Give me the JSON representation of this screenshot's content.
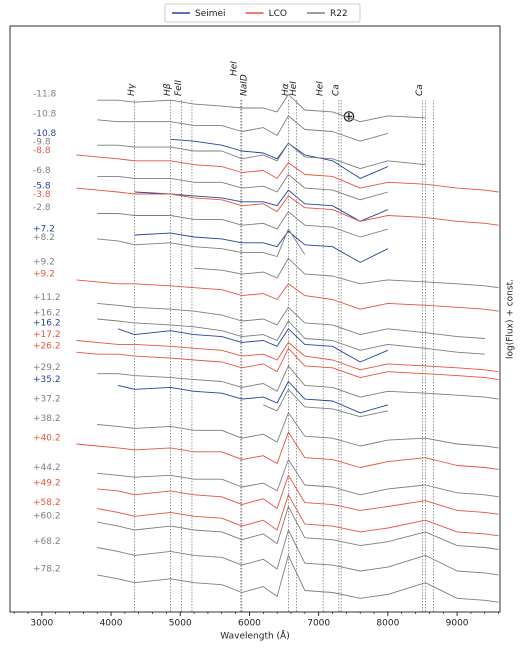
{
  "chart_data": {
    "type": "line",
    "xlabel": "Wavelength (Å)",
    "ylabel": "log(Flux) + const.",
    "legend": [
      {
        "name": "Seimei",
        "color": "#23459b"
      },
      {
        "name": "LCO",
        "color": "#e8553e"
      },
      {
        "name": "R22",
        "color": "#7f7f7f"
      }
    ],
    "xlim": [
      2540,
      9620
    ],
    "xticks": [
      3000,
      4000,
      5000,
      6000,
      7000,
      8000,
      9000
    ],
    "xminor": [
      2600,
      2800,
      3200,
      3400,
      3600,
      3800,
      4200,
      4400,
      4600,
      4800,
      5200,
      5400,
      5600,
      5800,
      6200,
      6400,
      6600,
      6800,
      7200,
      7400,
      7600,
      7800,
      8200,
      8400,
      8600,
      8800,
      9200,
      9400,
      9600
    ],
    "ylim": [
      0,
      30
    ],
    "line_ids": [
      {
        "label": "Hγ",
        "x": [
          4340
        ]
      },
      {
        "label": "Hβ",
        "x": [
          4861
        ]
      },
      {
        "label": "FeII",
        "x": [
          5018,
          5169
        ]
      },
      {
        "label": "HeI",
        "x": [
          5876
        ]
      },
      {
        "label": "NaID",
        "x": [
          5890
        ]
      },
      {
        "label": "Hα",
        "x": [
          6563
        ]
      },
      {
        "label": "HeI",
        "x": [
          6678
        ]
      },
      {
        "label": "HeI",
        "x": [
          7065
        ]
      },
      {
        "label": "Ca",
        "x": [
          7291,
          7324
        ]
      },
      {
        "label": "Ca",
        "x": [
          8498,
          8542,
          8662
        ]
      }
    ],
    "annotation": "⊕",
    "x": [
      3500,
      3800,
      4100,
      4340,
      4861,
      5200,
      5600,
      5890,
      6200,
      6400,
      6563,
      6800,
      7200,
      7600,
      8000,
      8542,
      9000,
      9400,
      9600
    ],
    "spectra": [
      {
        "label": "-11.8",
        "color": "#7f7f7f",
        "values": [
          null,
          26.2,
          26.2,
          26.1,
          26.2,
          26.0,
          25.9,
          25.8,
          25.8,
          25.6,
          26.5,
          25.7,
          25.6,
          25.1,
          25.4,
          25.3,
          null,
          null,
          null
        ]
      },
      {
        "label": "-10.8",
        "color": "#7f7f7f",
        "values": [
          null,
          25.2,
          25.1,
          25.1,
          25.1,
          24.9,
          24.9,
          24.6,
          24.8,
          24.4,
          25.4,
          24.7,
          24.6,
          24.1,
          24.5,
          null,
          null,
          null,
          null
        ]
      },
      {
        "label": "-10.8",
        "color": "#23459b",
        "values": [
          null,
          null,
          null,
          null,
          24.2,
          24.1,
          23.9,
          23.6,
          23.5,
          23.2,
          24.0,
          23.4,
          23.1,
          22.2,
          22.8,
          null,
          null,
          null,
          null
        ]
      },
      {
        "label": "-9.8",
        "color": "#7f7f7f",
        "values": [
          null,
          23.9,
          23.9,
          23.8,
          23.8,
          23.6,
          23.6,
          23.2,
          23.4,
          23.1,
          24.0,
          23.3,
          23.2,
          22.7,
          23.1,
          22.9,
          null,
          null,
          null
        ]
      },
      {
        "label": "-8.8",
        "color": "#e8553e",
        "values": [
          23.4,
          23.3,
          23.2,
          23.1,
          23.1,
          22.9,
          22.8,
          22.5,
          22.6,
          22.2,
          23.0,
          22.4,
          22.3,
          21.7,
          22.0,
          21.9,
          21.7,
          21.6,
          21.5
        ]
      },
      {
        "label": "-6.8",
        "color": "#7f7f7f",
        "values": [
          null,
          22.3,
          22.3,
          22.2,
          22.2,
          22.0,
          22.0,
          21.7,
          21.8,
          21.5,
          22.4,
          21.7,
          21.6,
          21.1,
          21.5,
          null,
          null,
          null,
          null
        ]
      },
      {
        "label": "-5.8",
        "color": "#23459b",
        "values": [
          null,
          null,
          null,
          21.5,
          21.4,
          21.3,
          21.2,
          21.0,
          21.0,
          20.8,
          21.6,
          20.9,
          20.8,
          20.0,
          20.6,
          null,
          null,
          null,
          null
        ]
      },
      {
        "label": "-3.8",
        "color": "#e8553e",
        "values": [
          21.7,
          21.6,
          21.5,
          21.4,
          21.4,
          21.2,
          21.1,
          20.8,
          20.9,
          20.5,
          21.3,
          20.7,
          20.6,
          20.0,
          20.3,
          20.2,
          20.0,
          19.9,
          19.8
        ]
      },
      {
        "label": "-2.8",
        "color": "#7f7f7f",
        "values": [
          null,
          20.4,
          20.4,
          20.3,
          20.3,
          20.1,
          20.1,
          19.8,
          19.9,
          19.6,
          20.5,
          19.8,
          19.7,
          19.2,
          19.6,
          null,
          null,
          null,
          null
        ]
      },
      {
        "label": "+7.2",
        "color": "#23459b",
        "values": [
          null,
          null,
          null,
          19.3,
          19.4,
          19.2,
          19.1,
          18.9,
          18.9,
          18.7,
          19.5,
          18.8,
          18.7,
          17.9,
          18.6,
          null,
          null,
          null,
          null
        ]
      },
      {
        "label": "+8.2",
        "color": "#7f7f7f",
        "values": [
          null,
          19.1,
          19.0,
          18.8,
          18.9,
          18.7,
          18.6,
          18.4,
          18.4,
          18.2,
          19.6,
          18.3,
          null,
          null,
          null,
          null,
          null,
          null,
          null
        ]
      },
      {
        "label": "+9.2",
        "color": "#7f7f7f",
        "values": [
          null,
          null,
          null,
          null,
          null,
          17.6,
          17.5,
          17.3,
          17.4,
          17.1,
          18.1,
          17.3,
          17.2,
          16.8,
          17.0,
          16.9,
          16.8,
          16.7,
          16.6
        ]
      },
      {
        "label": "+9.2",
        "color": "#e8553e",
        "values": [
          17.0,
          16.9,
          16.8,
          16.8,
          16.7,
          16.6,
          16.5,
          16.2,
          16.3,
          16.0,
          16.8,
          16.2,
          16.0,
          15.5,
          15.8,
          15.7,
          15.6,
          15.5,
          15.4
        ]
      },
      {
        "label": "+11.2",
        "color": "#7f7f7f",
        "values": [
          null,
          15.8,
          15.7,
          15.6,
          15.5,
          15.4,
          15.2,
          14.9,
          15.0,
          14.7,
          15.6,
          14.8,
          14.7,
          14.2,
          14.5,
          14.3,
          14.1,
          14.0,
          null
        ]
      },
      {
        "label": "+16.2",
        "color": "#7f7f7f",
        "values": [
          null,
          15.0,
          14.9,
          14.8,
          14.7,
          14.6,
          14.4,
          14.1,
          14.2,
          13.9,
          14.9,
          14.0,
          13.9,
          13.4,
          13.7,
          13.5,
          13.3,
          13.2,
          null
        ]
      },
      {
        "label": "+16.2",
        "color": "#23459b",
        "values": [
          null,
          null,
          14.5,
          14.2,
          14.4,
          14.2,
          14.1,
          13.8,
          13.9,
          13.6,
          14.5,
          13.7,
          13.6,
          12.8,
          13.4,
          null,
          null,
          null,
          null
        ]
      },
      {
        "label": "+17.2",
        "color": "#e8553e",
        "values": [
          13.9,
          13.8,
          13.7,
          13.7,
          13.6,
          13.5,
          13.4,
          13.1,
          13.2,
          12.9,
          13.8,
          13.1,
          12.9,
          12.4,
          12.7,
          12.6,
          12.5,
          12.4,
          12.3
        ]
      },
      {
        "label": "+26.2",
        "color": "#e8553e",
        "values": [
          13.3,
          13.2,
          13.2,
          13.1,
          13.0,
          12.9,
          12.8,
          12.5,
          12.7,
          12.3,
          13.5,
          12.6,
          12.5,
          12.0,
          12.3,
          12.2,
          12.1,
          12.0,
          11.9
        ]
      },
      {
        "label": "+29.2",
        "color": "#7f7f7f",
        "values": [
          null,
          12.2,
          12.2,
          12.1,
          12.0,
          11.9,
          11.8,
          11.5,
          11.7,
          11.3,
          12.6,
          11.6,
          11.5,
          11.0,
          11.3,
          11.2,
          11.1,
          11.0,
          10.9
        ]
      },
      {
        "label": "+35.2",
        "color": "#23459b",
        "values": [
          null,
          null,
          11.6,
          11.4,
          11.5,
          11.3,
          11.2,
          10.9,
          11.0,
          10.7,
          11.8,
          10.9,
          10.8,
          10.2,
          10.6,
          null,
          null,
          null,
          null
        ]
      },
      {
        "label": "+37.2",
        "color": "#7f7f7f",
        "values": [
          null,
          null,
          null,
          null,
          null,
          null,
          null,
          null,
          10.6,
          10.3,
          11.4,
          10.5,
          10.4,
          10.0,
          10.3,
          null,
          null,
          null,
          null
        ]
      },
      {
        "label": "+38.2",
        "color": "#7f7f7f",
        "values": [
          null,
          9.6,
          9.5,
          9.4,
          9.5,
          9.3,
          9.3,
          8.9,
          9.1,
          8.7,
          10.2,
          9.0,
          8.9,
          8.5,
          8.8,
          8.9,
          8.6,
          8.5,
          8.4
        ]
      },
      {
        "label": "+40.2",
        "color": "#e8553e",
        "values": [
          8.6,
          8.5,
          8.4,
          8.3,
          8.4,
          8.2,
          8.2,
          7.8,
          8.0,
          7.6,
          9.2,
          7.9,
          7.8,
          7.4,
          7.7,
          7.9,
          7.5,
          7.4,
          7.3
        ]
      },
      {
        "label": "+44.2",
        "color": "#7f7f7f",
        "values": [
          null,
          7.1,
          7.0,
          6.9,
          7.0,
          6.8,
          6.8,
          6.4,
          6.6,
          6.2,
          7.8,
          6.5,
          6.4,
          6.0,
          6.3,
          6.5,
          6.1,
          6.0,
          5.9
        ]
      },
      {
        "label": "+49.2",
        "color": "#e8553e",
        "values": [
          null,
          6.3,
          6.2,
          6.0,
          6.2,
          6.0,
          5.9,
          5.5,
          5.8,
          5.3,
          7.0,
          5.6,
          5.5,
          5.2,
          5.4,
          5.7,
          5.2,
          5.1,
          5.0
        ]
      },
      {
        "label": "+58.2",
        "color": "#e8553e",
        "values": [
          null,
          5.3,
          5.1,
          4.9,
          5.1,
          4.9,
          4.8,
          4.4,
          4.7,
          4.2,
          6.0,
          4.5,
          4.4,
          4.1,
          4.3,
          4.7,
          4.1,
          4.0,
          3.9
        ]
      },
      {
        "label": "+60.2",
        "color": "#7f7f7f",
        "values": [
          null,
          4.6,
          4.4,
          4.2,
          4.4,
          4.2,
          4.1,
          3.7,
          4.0,
          3.5,
          5.4,
          3.8,
          3.7,
          3.4,
          3.6,
          4.1,
          3.4,
          3.3,
          3.2
        ]
      },
      {
        "label": "+68.2",
        "color": "#7f7f7f",
        "values": [
          null,
          3.3,
          3.1,
          2.9,
          3.1,
          2.9,
          2.8,
          2.4,
          2.7,
          2.2,
          4.2,
          2.5,
          2.4,
          2.1,
          2.3,
          2.9,
          2.1,
          2.0,
          1.9
        ]
      },
      {
        "label": "+78.2",
        "color": "#7f7f7f",
        "values": [
          null,
          1.9,
          1.7,
          1.5,
          1.7,
          1.5,
          1.4,
          1.0,
          1.3,
          0.8,
          2.9,
          1.1,
          1.0,
          0.7,
          0.9,
          1.5,
          0.7,
          0.6,
          0.5
        ]
      }
    ]
  }
}
